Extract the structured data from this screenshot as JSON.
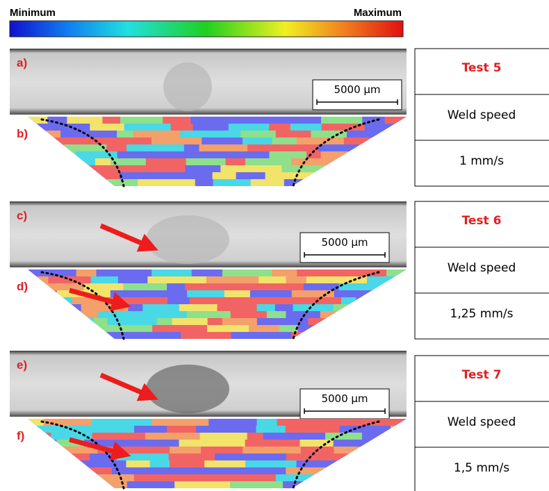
{
  "colorbar": {
    "min_label": "Minimum",
    "max_label": "Maximum"
  },
  "panels": [
    {
      "photo_label": "a)",
      "map_label": "b)",
      "scale_bar": "5000 µm",
      "test": "Test 5",
      "parameter": "Weld speed",
      "value": "1 mm/s"
    },
    {
      "photo_label": "c)",
      "map_label": "d)",
      "scale_bar": "5000 µm",
      "test": "Test 6",
      "parameter": "Weld speed",
      "value": "1,25 mm/s"
    },
    {
      "photo_label": "e)",
      "map_label": "f)",
      "scale_bar": "5000 µm",
      "test": "Test 7",
      "parameter": "Weld speed",
      "value": "1,5 mm/s"
    }
  ]
}
